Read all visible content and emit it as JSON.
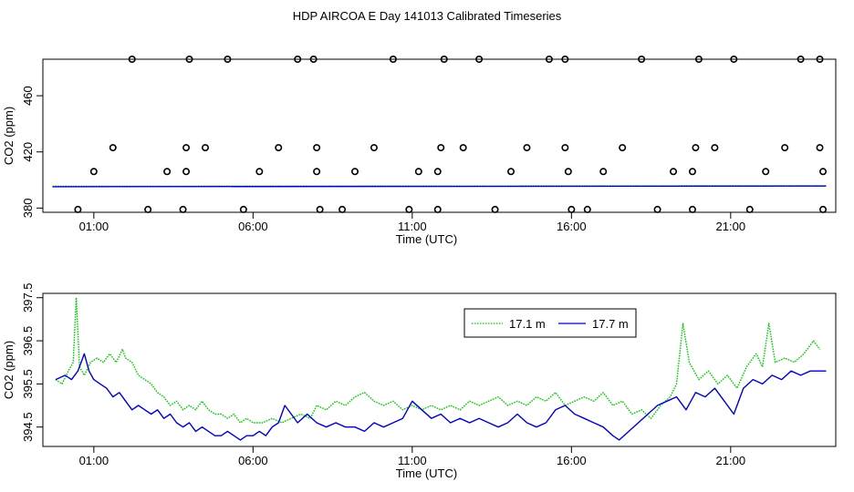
{
  "figure": {
    "title": "HDP AIRCOA E  Day 141013  Calibrated Timeseries"
  },
  "chart_data": [
    {
      "type": "scatter",
      "xlabel": "Time (UTC)",
      "ylabel": "CO2 (ppm)",
      "xlim": [
        -0.6,
        24.3
      ],
      "ylim": [
        377,
        486
      ],
      "x_ticks": [
        1,
        6,
        11,
        16,
        21
      ],
      "x_tick_labels": [
        "01:00",
        "06:00",
        "11:00",
        "16:00",
        "21:00"
      ],
      "y_ticks": [
        380,
        420,
        460
      ],
      "y_tick_labels": [
        "380",
        "420",
        "460"
      ],
      "grid": false,
      "series": [
        {
          "color": "#000000",
          "marker": "open-circle",
          "points": [
            [
              0.5,
              379
            ],
            [
              1.0,
              406
            ],
            [
              1.6,
              423
            ],
            [
              2.2,
              486
            ],
            [
              2.7,
              379
            ],
            [
              3.3,
              406
            ],
            [
              3.8,
              379
            ],
            [
              3.9,
              406
            ],
            [
              3.9,
              423
            ],
            [
              4.0,
              486
            ],
            [
              4.5,
              423
            ],
            [
              5.2,
              486
            ],
            [
              5.7,
              379
            ],
            [
              6.2,
              406
            ],
            [
              6.8,
              423
            ],
            [
              7.4,
              486
            ],
            [
              7.9,
              486
            ],
            [
              8.0,
              423
            ],
            [
              8.0,
              406
            ],
            [
              8.1,
              379
            ],
            [
              8.8,
              379
            ],
            [
              9.2,
              406
            ],
            [
              9.8,
              423
            ],
            [
              10.4,
              486
            ],
            [
              10.9,
              379
            ],
            [
              11.2,
              406
            ],
            [
              11.8,
              379
            ],
            [
              11.8,
              406
            ],
            [
              11.9,
              423
            ],
            [
              12.0,
              486
            ],
            [
              12.6,
              423
            ],
            [
              13.1,
              486
            ],
            [
              13.6,
              379
            ],
            [
              14.1,
              406
            ],
            [
              14.6,
              423
            ],
            [
              15.3,
              486
            ],
            [
              15.8,
              486
            ],
            [
              15.8,
              423
            ],
            [
              15.9,
              406
            ],
            [
              16.0,
              379
            ],
            [
              16.5,
              379
            ],
            [
              17.0,
              406
            ],
            [
              17.6,
              423
            ],
            [
              18.2,
              486
            ],
            [
              18.7,
              379
            ],
            [
              19.2,
              406
            ],
            [
              19.8,
              379
            ],
            [
              19.8,
              406
            ],
            [
              19.9,
              423
            ],
            [
              20.0,
              486
            ],
            [
              20.5,
              423
            ],
            [
              21.1,
              486
            ],
            [
              21.6,
              379
            ],
            [
              22.1,
              406
            ],
            [
              22.7,
              423
            ],
            [
              23.2,
              486
            ],
            [
              23.8,
              486
            ],
            [
              23.8,
              423
            ],
            [
              23.9,
              406
            ],
            [
              23.9,
              379
            ]
          ]
        },
        {
          "name": "17.1 m",
          "color": "#00cc00",
          "marker": "line",
          "points": [
            [
              -0.3,
              395.5
            ],
            [
              24.0,
              395.9
            ]
          ]
        },
        {
          "name": "17.7 m",
          "color": "#0000cc",
          "marker": "line",
          "points": [
            [
              -0.3,
              395.2
            ],
            [
              24.0,
              395.7
            ]
          ]
        }
      ]
    },
    {
      "type": "line",
      "xlabel": "Time (UTC)",
      "ylabel": "CO2 (ppm)",
      "xlim": [
        -0.6,
        24.3
      ],
      "ylim": [
        394.05,
        397.6
      ],
      "x_ticks": [
        1,
        6,
        11,
        16,
        21
      ],
      "x_tick_labels": [
        "01:00",
        "06:00",
        "11:00",
        "16:00",
        "21:00"
      ],
      "y_ticks": [
        394.5,
        395.5,
        396.5,
        397.5
      ],
      "y_tick_labels": [
        "394.5",
        "395.5",
        "396.5",
        "397.5"
      ],
      "grid": false,
      "legend": {
        "position": "top-right",
        "labels": [
          "17.1 m",
          "17.7 m"
        ]
      },
      "series": [
        {
          "name": "17.1 m",
          "color": "#00cc00",
          "points": [
            [
              -0.2,
              395.6
            ],
            [
              0.0,
              395.5
            ],
            [
              0.2,
              395.8
            ],
            [
              0.35,
              396.0
            ],
            [
              0.45,
              397.5
            ],
            [
              0.55,
              395.9
            ],
            [
              0.7,
              395.7
            ],
            [
              0.9,
              396.0
            ],
            [
              1.1,
              396.1
            ],
            [
              1.3,
              396.0
            ],
            [
              1.5,
              396.2
            ],
            [
              1.7,
              396.0
            ],
            [
              1.9,
              396.3
            ],
            [
              2.0,
              396.1
            ],
            [
              2.2,
              396.0
            ],
            [
              2.4,
              395.7
            ],
            [
              2.6,
              395.6
            ],
            [
              2.8,
              395.5
            ],
            [
              3.0,
              395.3
            ],
            [
              3.2,
              395.2
            ],
            [
              3.4,
              395.0
            ],
            [
              3.6,
              395.1
            ],
            [
              3.8,
              394.9
            ],
            [
              4.0,
              395.0
            ],
            [
              4.2,
              394.9
            ],
            [
              4.4,
              395.1
            ],
            [
              4.6,
              394.9
            ],
            [
              4.8,
              394.8
            ],
            [
              5.0,
              394.8
            ],
            [
              5.2,
              394.7
            ],
            [
              5.4,
              394.8
            ],
            [
              5.6,
              394.6
            ],
            [
              5.8,
              394.7
            ],
            [
              6.0,
              394.6
            ],
            [
              6.3,
              394.6
            ],
            [
              6.6,
              394.7
            ],
            [
              6.9,
              394.6
            ],
            [
              7.2,
              394.7
            ],
            [
              7.5,
              394.8
            ],
            [
              7.8,
              394.7
            ],
            [
              8.0,
              395.0
            ],
            [
              8.3,
              394.9
            ],
            [
              8.6,
              395.1
            ],
            [
              8.9,
              395.0
            ],
            [
              9.2,
              395.2
            ],
            [
              9.5,
              395.3
            ],
            [
              9.8,
              395.1
            ],
            [
              10.1,
              395.0
            ],
            [
              10.4,
              395.1
            ],
            [
              10.7,
              394.9
            ],
            [
              11.0,
              395.0
            ],
            [
              11.3,
              394.9
            ],
            [
              11.6,
              395.0
            ],
            [
              11.9,
              394.9
            ],
            [
              12.2,
              395.0
            ],
            [
              12.5,
              394.9
            ],
            [
              12.8,
              395.1
            ],
            [
              13.1,
              395.0
            ],
            [
              13.4,
              395.1
            ],
            [
              13.7,
              395.2
            ],
            [
              14.0,
              395.0
            ],
            [
              14.3,
              395.1
            ],
            [
              14.6,
              395.0
            ],
            [
              14.9,
              395.2
            ],
            [
              15.2,
              395.1
            ],
            [
              15.5,
              395.3
            ],
            [
              15.8,
              395.0
            ],
            [
              16.1,
              395.1
            ],
            [
              16.4,
              395.2
            ],
            [
              16.7,
              395.1
            ],
            [
              17.0,
              395.3
            ],
            [
              17.3,
              395.0
            ],
            [
              17.6,
              395.1
            ],
            [
              17.9,
              394.8
            ],
            [
              18.2,
              394.9
            ],
            [
              18.5,
              394.7
            ],
            [
              18.8,
              395.0
            ],
            [
              19.1,
              395.2
            ],
            [
              19.3,
              395.5
            ],
            [
              19.5,
              396.9
            ],
            [
              19.7,
              396.0
            ],
            [
              20.0,
              395.6
            ],
            [
              20.3,
              395.8
            ],
            [
              20.6,
              395.5
            ],
            [
              20.9,
              395.7
            ],
            [
              21.2,
              395.4
            ],
            [
              21.5,
              395.9
            ],
            [
              21.8,
              396.2
            ],
            [
              22.0,
              395.9
            ],
            [
              22.2,
              396.9
            ],
            [
              22.4,
              396.0
            ],
            [
              22.7,
              396.1
            ],
            [
              23.0,
              396.0
            ],
            [
              23.3,
              396.2
            ],
            [
              23.6,
              396.5
            ],
            [
              23.8,
              396.3
            ]
          ]
        },
        {
          "name": "17.7 m",
          "color": "#0000cc",
          "points": [
            [
              -0.2,
              395.6
            ],
            [
              0.1,
              395.7
            ],
            [
              0.3,
              395.6
            ],
            [
              0.5,
              395.8
            ],
            [
              0.7,
              396.2
            ],
            [
              0.85,
              395.8
            ],
            [
              1.0,
              395.6
            ],
            [
              1.2,
              395.5
            ],
            [
              1.4,
              395.4
            ],
            [
              1.6,
              395.2
            ],
            [
              1.8,
              395.3
            ],
            [
              2.0,
              395.1
            ],
            [
              2.2,
              394.9
            ],
            [
              2.4,
              395.0
            ],
            [
              2.6,
              394.9
            ],
            [
              2.8,
              394.8
            ],
            [
              3.0,
              394.9
            ],
            [
              3.2,
              394.7
            ],
            [
              3.4,
              394.8
            ],
            [
              3.6,
              394.6
            ],
            [
              3.8,
              394.5
            ],
            [
              4.0,
              394.6
            ],
            [
              4.2,
              394.4
            ],
            [
              4.4,
              394.5
            ],
            [
              4.6,
              394.4
            ],
            [
              4.8,
              394.3
            ],
            [
              5.0,
              394.3
            ],
            [
              5.2,
              394.4
            ],
            [
              5.4,
              394.3
            ],
            [
              5.6,
              394.2
            ],
            [
              5.8,
              394.3
            ],
            [
              6.0,
              394.3
            ],
            [
              6.2,
              394.4
            ],
            [
              6.4,
              394.3
            ],
            [
              6.6,
              394.5
            ],
            [
              6.8,
              394.6
            ],
            [
              7.0,
              395.0
            ],
            [
              7.2,
              394.8
            ],
            [
              7.4,
              394.6
            ],
            [
              7.7,
              394.8
            ],
            [
              8.0,
              394.6
            ],
            [
              8.3,
              394.5
            ],
            [
              8.6,
              394.6
            ],
            [
              8.9,
              394.5
            ],
            [
              9.2,
              394.5
            ],
            [
              9.5,
              394.4
            ],
            [
              9.8,
              394.6
            ],
            [
              10.1,
              394.5
            ],
            [
              10.4,
              394.6
            ],
            [
              10.7,
              394.7
            ],
            [
              11.0,
              395.1
            ],
            [
              11.3,
              394.9
            ],
            [
              11.6,
              394.7
            ],
            [
              11.9,
              394.8
            ],
            [
              12.2,
              394.6
            ],
            [
              12.5,
              394.7
            ],
            [
              12.8,
              394.6
            ],
            [
              13.1,
              394.7
            ],
            [
              13.4,
              394.6
            ],
            [
              13.7,
              394.5
            ],
            [
              14.0,
              394.6
            ],
            [
              14.3,
              394.8
            ],
            [
              14.6,
              394.6
            ],
            [
              14.9,
              394.5
            ],
            [
              15.2,
              394.6
            ],
            [
              15.5,
              394.9
            ],
            [
              15.8,
              395.0
            ],
            [
              16.1,
              394.8
            ],
            [
              16.4,
              394.7
            ],
            [
              16.7,
              394.6
            ],
            [
              17.0,
              394.5
            ],
            [
              17.3,
              394.3
            ],
            [
              17.5,
              394.2
            ],
            [
              17.8,
              394.4
            ],
            [
              18.1,
              394.6
            ],
            [
              18.4,
              394.8
            ],
            [
              18.7,
              395.0
            ],
            [
              19.0,
              395.1
            ],
            [
              19.3,
              395.2
            ],
            [
              19.6,
              394.9
            ],
            [
              19.9,
              395.3
            ],
            [
              20.2,
              395.2
            ],
            [
              20.5,
              395.4
            ],
            [
              20.8,
              395.1
            ],
            [
              21.1,
              394.8
            ],
            [
              21.4,
              395.4
            ],
            [
              21.7,
              395.6
            ],
            [
              22.0,
              395.5
            ],
            [
              22.3,
              395.7
            ],
            [
              22.6,
              395.6
            ],
            [
              22.9,
              395.8
            ],
            [
              23.2,
              395.7
            ],
            [
              23.5,
              395.8
            ],
            [
              24.0,
              395.8
            ]
          ]
        }
      ]
    }
  ]
}
